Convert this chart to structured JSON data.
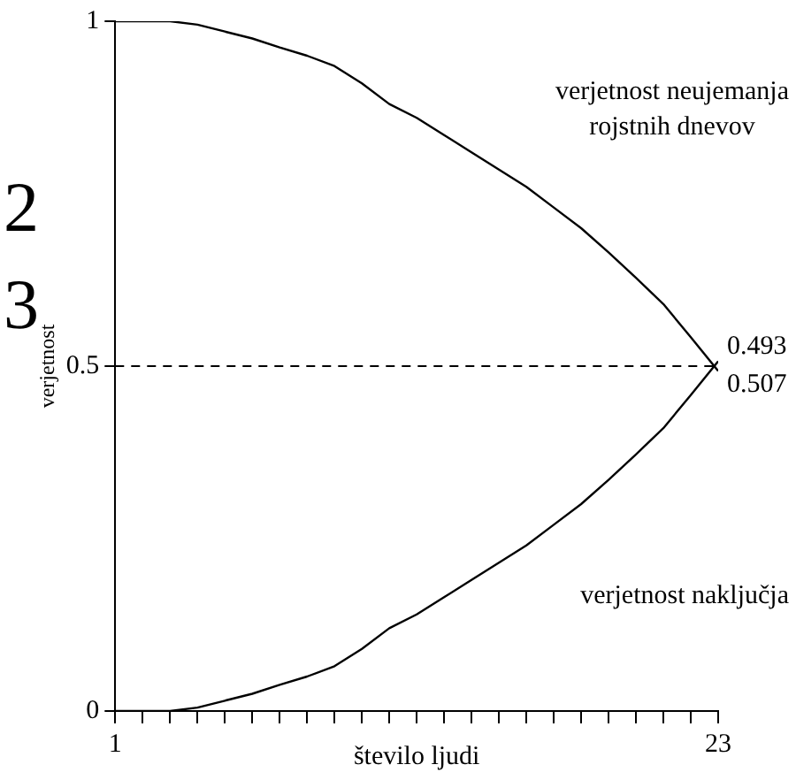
{
  "chart_data": {
    "type": "line",
    "xlabel": "število ljudi",
    "ylabel": "verjetnost",
    "x": [
      1,
      2,
      3,
      4,
      5,
      6,
      7,
      8,
      9,
      10,
      11,
      12,
      13,
      14,
      15,
      16,
      17,
      18,
      19,
      20,
      21,
      22,
      23
    ],
    "series": [
      {
        "name": "verjetnost neujemanja rojstnih dnevov",
        "color": "#000000",
        "values": [
          1,
          1,
          1,
          0.995,
          0.985,
          0.975,
          0.962,
          0.95,
          0.935,
          0.91,
          0.88,
          0.86,
          0.835,
          0.81,
          0.785,
          0.76,
          0.73,
          0.7,
          0.665,
          0.628,
          0.59,
          0.542,
          0.493
        ],
        "value_labels": [
          null,
          null,
          null,
          null,
          null,
          null,
          null,
          null,
          null,
          null,
          null,
          null,
          null,
          null,
          null,
          null,
          null,
          null,
          null,
          null,
          null,
          null,
          "0.493"
        ]
      },
      {
        "name": "verjetnost naključja",
        "color": "#000000",
        "values": [
          0,
          0,
          0,
          0.005,
          0.015,
          0.025,
          0.038,
          0.05,
          0.065,
          0.09,
          0.12,
          0.14,
          0.165,
          0.19,
          0.215,
          0.24,
          0.27,
          0.3,
          0.335,
          0.372,
          0.41,
          0.458,
          0.507
        ],
        "value_labels": [
          null,
          null,
          null,
          null,
          null,
          null,
          null,
          null,
          null,
          null,
          null,
          null,
          null,
          null,
          null,
          null,
          null,
          null,
          null,
          null,
          null,
          null,
          "0.507"
        ]
      }
    ],
    "xlim": [
      1,
      23
    ],
    "xticks": [
      1,
      {
        "value": 2,
        "label": null
      },
      {
        "value": 3,
        "label": null
      },
      {
        "value": 4,
        "label": null
      },
      {
        "value": 5,
        "label": null
      },
      {
        "value": 6,
        "label": null
      },
      {
        "value": 7,
        "label": null
      },
      {
        "value": 8,
        "label": null
      },
      {
        "value": 9,
        "label": null
      },
      {
        "value": 10,
        "label": null
      },
      {
        "value": 11,
        "label": null
      },
      {
        "value": 12,
        "label": null
      },
      {
        "value": 13,
        "label": null
      },
      {
        "value": 14,
        "label": null
      },
      {
        "value": 15,
        "label": null
      },
      {
        "value": 16,
        "label": null
      },
      {
        "value": 17,
        "label": null
      },
      {
        "value": 18,
        "label": null
      },
      {
        "value": 19,
        "label": null
      },
      {
        "value": 20,
        "label": null
      },
      {
        "value": 21,
        "label": null
      },
      {
        "value": 22,
        "label": null
      },
      23
    ],
    "ylim": [
      0,
      1
    ],
    "yticks": [
      0,
      0.5,
      1
    ],
    "ref_lines": [
      {
        "axis": "y",
        "value": 0.5,
        "line_style": "dashed",
        "color": "#000000"
      }
    ],
    "annotations": [
      "2",
      "3"
    ],
    "grid": false,
    "legend": false,
    "marker": "none",
    "line_style": "solid"
  }
}
